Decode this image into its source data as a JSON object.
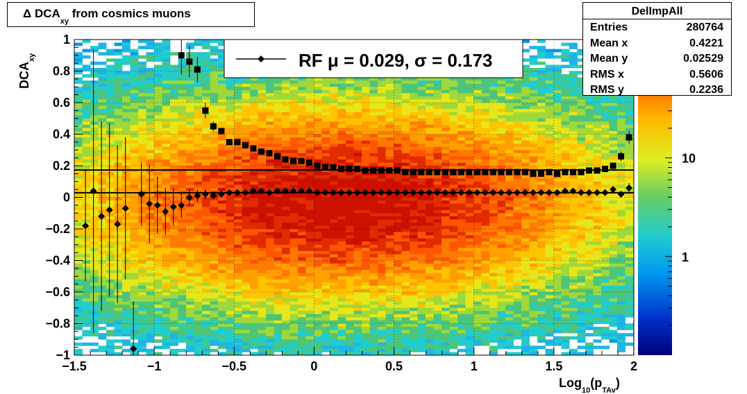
{
  "title": {
    "main": "Δ DCA",
    "sub": "xy",
    "rest": " from cosmics muons"
  },
  "stats": {
    "name": "DelImpAll",
    "rows": [
      {
        "key": "Entries",
        "value": "280764"
      },
      {
        "key": "Mean x",
        "value": "0.4221"
      },
      {
        "key": "Mean y",
        "value": "0.02529"
      },
      {
        "key": "RMS x",
        "value": "0.5606"
      },
      {
        "key": "RMS y",
        "value": "0.2236"
      }
    ]
  },
  "chart_data": {
    "type": "heatmap",
    "title": "Δ DCA xy from cosmics muons",
    "xlabel": "Log10(pTAv)",
    "ylabel": "DCAxy",
    "xlim": [
      -1.5,
      2
    ],
    "ylim": [
      -1,
      1
    ],
    "x_ticks": [
      -1.5,
      -1,
      -0.5,
      0,
      0.5,
      1,
      1.5,
      2
    ],
    "x_tick_labels": [
      "−1.5",
      "−1",
      "−0.5",
      "0",
      "0.5",
      "1",
      "1.5",
      "2"
    ],
    "y_ticks": [
      -1,
      -0.8,
      -0.6,
      -0.4,
      -0.2,
      0,
      0.2,
      0.4,
      0.6,
      0.8,
      1
    ],
    "y_tick_labels": [
      "−1",
      "−0.8",
      "−0.6",
      "−0.4",
      "−0.2",
      "0",
      "0.2",
      "0.4",
      "0.6",
      "0.8",
      "1"
    ],
    "colorbar": {
      "scale": "log",
      "tick_values": [
        1,
        10
      ],
      "tick_labels": [
        "1",
        "10"
      ]
    },
    "legend": {
      "text": "RF μ =  0.029, σ =   0.173",
      "placement": "top-center"
    },
    "fit_lines": [
      {
        "y": 0.029
      },
      {
        "y": 0.173
      }
    ],
    "series": [
      {
        "marker": "diamond",
        "x": [
          -1.43,
          -1.38,
          -1.33,
          -1.28,
          -1.23,
          -1.18,
          -1.13,
          -1.08,
          -1.03,
          -0.98,
          -0.93,
          -0.88,
          -0.83,
          -0.78,
          -0.73,
          -0.68,
          -0.63,
          -0.58,
          -0.53,
          -0.48,
          -0.43,
          -0.38,
          -0.33,
          -0.28,
          -0.23,
          -0.18,
          -0.13,
          -0.08,
          -0.03,
          0.02,
          0.07,
          0.12,
          0.17,
          0.22,
          0.27,
          0.32,
          0.37,
          0.42,
          0.47,
          0.52,
          0.57,
          0.62,
          0.67,
          0.72,
          0.77,
          0.82,
          0.87,
          0.92,
          0.97,
          1.02,
          1.07,
          1.12,
          1.17,
          1.22,
          1.27,
          1.32,
          1.37,
          1.42,
          1.47,
          1.52,
          1.57,
          1.62,
          1.67,
          1.72,
          1.77,
          1.82,
          1.87,
          1.92,
          1.97
        ],
        "y": [
          -0.18,
          0.04,
          -0.12,
          -0.08,
          -0.17,
          -0.07,
          -0.96,
          0.02,
          -0.04,
          -0.05,
          -0.09,
          -0.06,
          -0.05,
          0.0,
          0.01,
          0.02,
          0.01,
          0.02,
          0.03,
          0.03,
          0.03,
          0.04,
          0.04,
          0.03,
          0.04,
          0.04,
          0.04,
          0.04,
          0.04,
          0.03,
          0.03,
          0.03,
          0.03,
          0.03,
          0.03,
          0.03,
          0.03,
          0.03,
          0.03,
          0.03,
          0.03,
          0.03,
          0.03,
          0.03,
          0.03,
          0.03,
          0.03,
          0.03,
          0.03,
          0.03,
          0.03,
          0.03,
          0.03,
          0.03,
          0.03,
          0.03,
          0.03,
          0.03,
          0.03,
          0.03,
          0.04,
          0.04,
          0.03,
          0.03,
          0.03,
          0.03,
          0.05,
          0.02,
          0.06
        ],
        "err": [
          0.35,
          0.9,
          0.6,
          0.55,
          0.5,
          0.45,
          0.3,
          0.2,
          0.25,
          0.18,
          0.15,
          0.12,
          0.08,
          0.05,
          0.04,
          0.03,
          0.02,
          0.02,
          0.015,
          0.01,
          0.01,
          0.01,
          0.01,
          0.01,
          0.01,
          0.01,
          0.01,
          0.01,
          0.01,
          0.01,
          0.01,
          0.01,
          0.01,
          0.01,
          0.01,
          0.01,
          0.01,
          0.01,
          0.01,
          0.01,
          0.01,
          0.01,
          0.01,
          0.01,
          0.01,
          0.01,
          0.01,
          0.01,
          0.01,
          0.01,
          0.01,
          0.01,
          0.01,
          0.01,
          0.01,
          0.01,
          0.01,
          0.01,
          0.01,
          0.01,
          0.01,
          0.01,
          0.01,
          0.01,
          0.01,
          0.02,
          0.02,
          0.02,
          0.03
        ]
      },
      {
        "marker": "square",
        "x": [
          -0.83,
          -0.78,
          -0.73,
          -0.68,
          -0.63,
          -0.58,
          -0.53,
          -0.48,
          -0.43,
          -0.38,
          -0.33,
          -0.28,
          -0.23,
          -0.18,
          -0.13,
          -0.08,
          -0.03,
          0.02,
          0.07,
          0.12,
          0.17,
          0.22,
          0.27,
          0.32,
          0.37,
          0.42,
          0.47,
          0.52,
          0.57,
          0.62,
          0.67,
          0.72,
          0.77,
          0.82,
          0.87,
          0.92,
          0.97,
          1.02,
          1.07,
          1.12,
          1.17,
          1.22,
          1.27,
          1.32,
          1.37,
          1.42,
          1.47,
          1.52,
          1.57,
          1.62,
          1.67,
          1.72,
          1.77,
          1.82,
          1.87,
          1.92,
          1.97
        ],
        "y": [
          0.9,
          0.86,
          0.81,
          0.55,
          0.45,
          0.42,
          0.35,
          0.35,
          0.33,
          0.31,
          0.29,
          0.28,
          0.26,
          0.24,
          0.23,
          0.23,
          0.22,
          0.2,
          0.19,
          0.19,
          0.18,
          0.18,
          0.18,
          0.17,
          0.17,
          0.17,
          0.17,
          0.17,
          0.16,
          0.16,
          0.16,
          0.16,
          0.16,
          0.16,
          0.16,
          0.16,
          0.16,
          0.16,
          0.16,
          0.16,
          0.16,
          0.16,
          0.16,
          0.16,
          0.15,
          0.15,
          0.16,
          0.15,
          0.16,
          0.16,
          0.16,
          0.17,
          0.17,
          0.18,
          0.2,
          0.26,
          0.38
        ],
        "err": [
          0.12,
          0.1,
          0.08,
          0.05,
          0.03,
          0.02,
          0.015,
          0.01,
          0.01,
          0.01,
          0.01,
          0.01,
          0.01,
          0.01,
          0.01,
          0.01,
          0.01,
          0.01,
          0.01,
          0.01,
          0.01,
          0.01,
          0.01,
          0.01,
          0.01,
          0.01,
          0.01,
          0.01,
          0.01,
          0.01,
          0.01,
          0.01,
          0.01,
          0.01,
          0.01,
          0.01,
          0.01,
          0.01,
          0.01,
          0.01,
          0.01,
          0.01,
          0.01,
          0.01,
          0.01,
          0.01,
          0.01,
          0.01,
          0.01,
          0.01,
          0.01,
          0.01,
          0.01,
          0.02,
          0.02,
          0.03,
          0.04
        ]
      }
    ]
  }
}
